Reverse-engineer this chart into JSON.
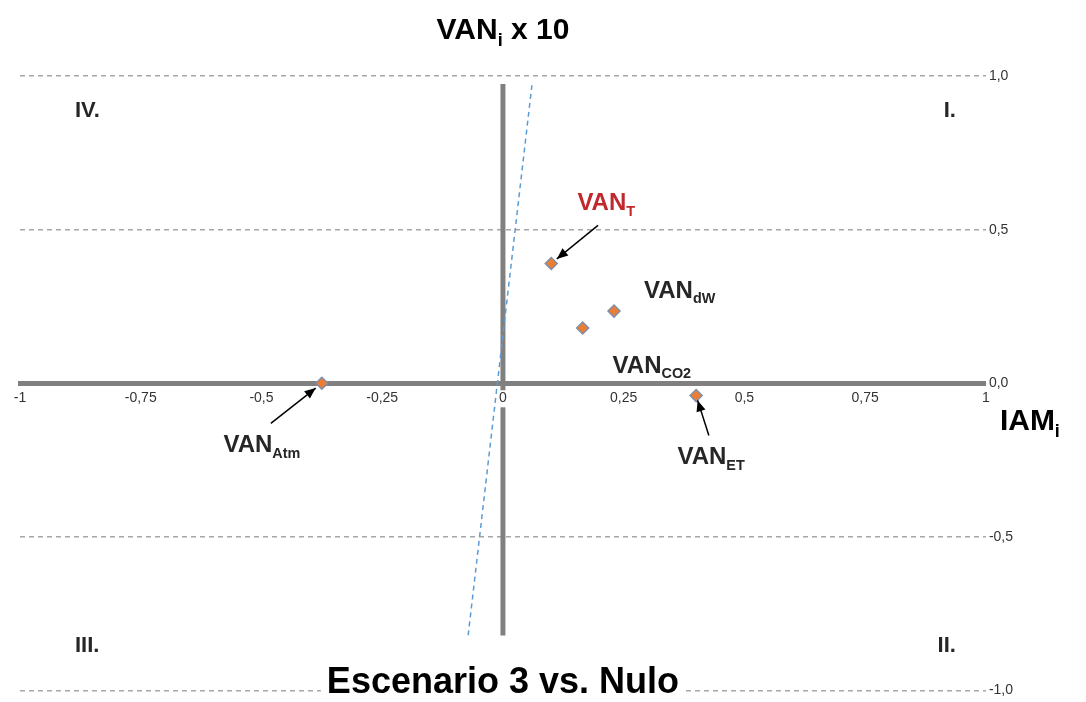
{
  "chart_data": {
    "type": "scatter",
    "title": "Escenario 3 vs. Nulo",
    "xlabel": "IAM$_{i}$",
    "ylabel": "VAN$_{i}$ x 10",
    "marker": "diamond",
    "legend": false,
    "grid": "y",
    "xlim": [
      -1,
      1
    ],
    "ylim": [
      -1,
      1
    ],
    "xticks": [
      -1,
      {
        "value": -0.75,
        "label": "-0,75"
      },
      {
        "value": -0.5,
        "label": "-0,5"
      },
      {
        "value": -0.25,
        "label": "-0,25"
      },
      0,
      {
        "value": 0.25,
        "label": "0,25"
      },
      {
        "value": 0.5,
        "label": "0,5"
      },
      {
        "value": 0.75,
        "label": "0,75"
      },
      1
    ],
    "yticks": [
      {
        "value": -1,
        "label": "-1,0"
      },
      {
        "value": -0.5,
        "label": "-0,5"
      },
      {
        "value": 0,
        "label": "0,0"
      },
      {
        "value": 0.5,
        "label": "0,5"
      },
      {
        "value": 1,
        "label": "1,0"
      }
    ],
    "series": [
      {
        "color": "#ed7d31",
        "x": [
          0.1,
          0.23,
          0.165,
          -0.375,
          0.4
        ],
        "values": [
          0.39,
          0.235,
          0.18,
          0,
          -0.04
        ]
      },
      {
        "type": "line",
        "color": "#5b9bd5",
        "line_style": "dashed",
        "marker": "none",
        "x": [
          -0.072,
          0.06
        ],
        "values": [
          -0.82,
          0.97
        ]
      }
    ],
    "annotations": [
      {
        "text": "VAN$_{T}$",
        "x": 0.1,
        "y": 0.39
      },
      {
        "text": "VAN$_{dW}$",
        "x": 0.23,
        "y": 0.235
      },
      {
        "text": "VAN$_{CO2}$",
        "x": 0.165,
        "y": 0.18
      },
      {
        "text": "VAN$_{Atm}$",
        "x": -0.375,
        "y": 0
      },
      {
        "text": "VAN$_{ET}$",
        "x": 0.4,
        "y": -0.04
      },
      "IV.",
      "I.",
      "III.",
      "II."
    ]
  }
}
